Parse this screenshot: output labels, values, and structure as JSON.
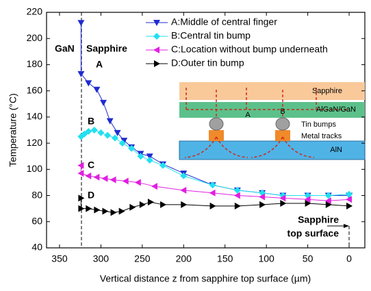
{
  "chart_data": {
    "type": "line",
    "xlabel": "Vertical distance z from sapphire top surface (µm)",
    "ylabel": "Temperature (°C)",
    "xlim": [
      365.7,
      -19
    ],
    "ylim": [
      40,
      220
    ],
    "xticks": [
      350,
      300,
      250,
      200,
      150,
      100,
      50,
      0
    ],
    "yticks": [
      40,
      60,
      80,
      100,
      120,
      140,
      160,
      180,
      200,
      220
    ],
    "legend": "upper right",
    "series": [
      {
        "name": "A:Middle of central finger",
        "color": "#1f2bd0",
        "marker": "triangle-down",
        "x": [
          324,
          324,
          315,
          305,
          297,
          289,
          280,
          272,
          263,
          252,
          241,
          225,
          200,
          165,
          135,
          105,
          80,
          50,
          25,
          0
        ],
        "values": [
          212,
          173,
          166,
          161,
          151,
          137,
          128,
          122,
          117,
          112,
          110,
          104,
          97,
          88,
          84,
          82,
          80,
          80,
          80,
          80
        ]
      },
      {
        "name": "B:Central tin bump",
        "color": "#22e0f0",
        "marker": "diamond",
        "x": [
          324,
          320,
          315,
          308,
          300,
          292,
          283,
          274,
          263,
          252,
          241,
          225,
          200,
          165,
          135,
          105,
          80,
          50,
          25,
          0
        ],
        "values": [
          125,
          127,
          129,
          130,
          128,
          126,
          124,
          120,
          116,
          110,
          107,
          103,
          95,
          88,
          84,
          82,
          80,
          80,
          80,
          81
        ]
      },
      {
        "name": "C:Location without bump underneath",
        "color": "#e020e0",
        "marker": "triangle-left",
        "x": [
          324,
          324,
          315,
          305,
          295,
          285,
          270,
          255,
          235,
          200,
          165,
          135,
          105,
          80,
          50,
          25,
          0
        ],
        "values": [
          103,
          97,
          95,
          94,
          93,
          92,
          91,
          90,
          87,
          84,
          82,
          80,
          79,
          78,
          77,
          76,
          77
        ]
      },
      {
        "name": "D:Outer tin bump",
        "color": "#000000",
        "marker": "triangle-right",
        "x": [
          324,
          324,
          315,
          305,
          295,
          285,
          275,
          262,
          250,
          240,
          225,
          200,
          165,
          135,
          105,
          80,
          50,
          25,
          0
        ],
        "values": [
          78,
          70,
          70,
          69,
          68,
          67,
          68,
          71,
          73,
          75,
          73,
          73,
          72,
          72,
          73,
          74,
          74,
          73,
          72
        ]
      }
    ],
    "annotations": [
      "GaN",
      "Sapphire",
      "A",
      "B",
      "C",
      "D",
      "Sapphire",
      "top surface"
    ]
  },
  "inset": {
    "labels": [
      "Sapphire",
      "AlGaN/GaN",
      "A",
      "B",
      "Tin bumps",
      "Metal tracks",
      "AlN"
    ]
  }
}
